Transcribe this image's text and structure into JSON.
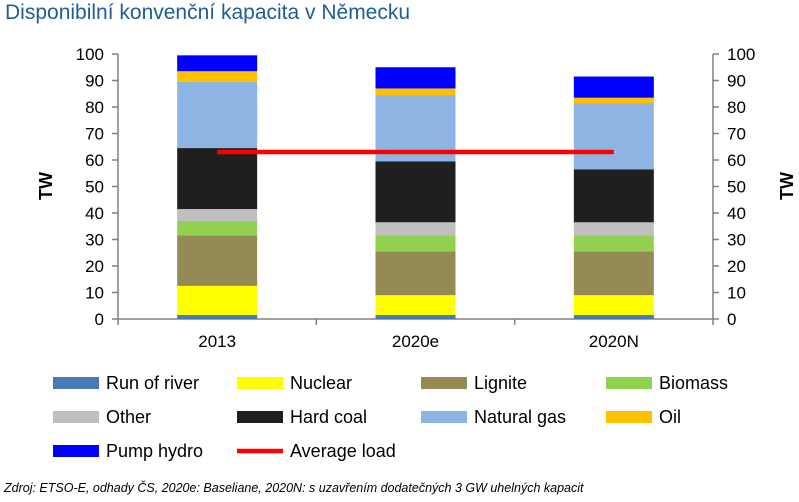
{
  "title": "Disponibilní konvenční kapacita v Německu",
  "source": "Zdroj: ETSO-E, odhady ČS, 2020e: Baseliane, 2020N: s uzavřením dodatečných 3 GW uhelných kapacit",
  "chart_data": {
    "type": "bar",
    "stacked": true,
    "categories": [
      "2013",
      "2020e",
      "2020N"
    ],
    "ylabel": "TW",
    "y2label": "TW",
    "ylim": [
      0,
      100
    ],
    "yticks": [
      0,
      10,
      20,
      30,
      40,
      50,
      60,
      70,
      80,
      90,
      100
    ],
    "grid": false,
    "legend_position": "bottom",
    "series": [
      {
        "name": "Run of river",
        "color": "#4a7ab5",
        "values": [
          1.5,
          1.5,
          1.5
        ]
      },
      {
        "name": "Nuclear",
        "color": "#ffff00",
        "values": [
          11,
          7.5,
          7.5
        ]
      },
      {
        "name": "Lignite",
        "color": "#948a54",
        "values": [
          19,
          16.5,
          16.5
        ]
      },
      {
        "name": "Biomass",
        "color": "#92d050",
        "values": [
          5.5,
          6,
          6
        ]
      },
      {
        "name": "Other",
        "color": "#bfbfbf",
        "values": [
          4.5,
          5,
          5
        ]
      },
      {
        "name": "Hard coal",
        "color": "#1f1f1f",
        "values": [
          23,
          23,
          20
        ]
      },
      {
        "name": "Natural gas",
        "color": "#8eb4e3",
        "values": [
          25,
          25,
          25
        ]
      },
      {
        "name": "Oil",
        "color": "#ffc000",
        "values": [
          4,
          2.5,
          2
        ]
      },
      {
        "name": "Pump hydro",
        "color": "#0000ff",
        "values": [
          6,
          8,
          8
        ]
      }
    ],
    "lines": [
      {
        "name": "Average load",
        "color": "#ff0000",
        "value": 63,
        "from": "2013",
        "to": "2020N"
      }
    ]
  }
}
